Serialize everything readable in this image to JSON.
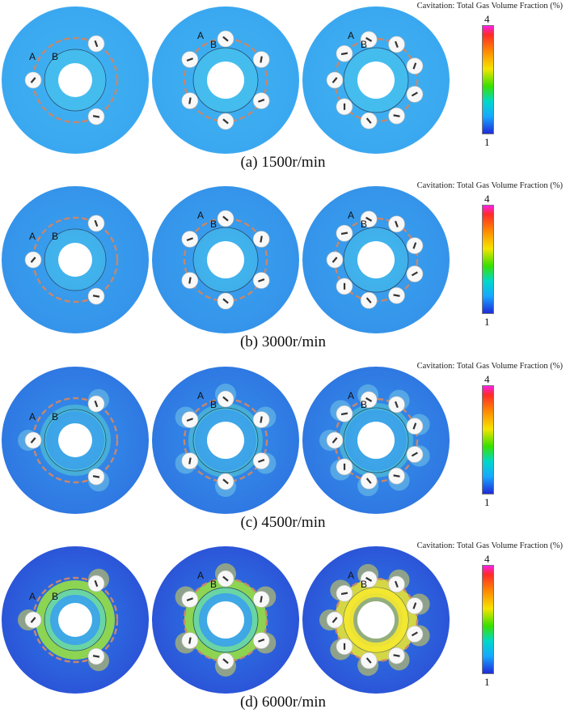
{
  "rows": [
    {
      "caption": "(a)  1500r/min",
      "cb_title": "Cavitation: Total Gas Volume Fraction (%)",
      "cb_max": "4",
      "cb_min": "1",
      "intensity": 0
    },
    {
      "caption": "(b)  3000r/min",
      "cb_title": "Cavitation: Total Gas Volume Fraction (%)",
      "cb_max": "4",
      "cb_min": "1",
      "intensity": 1
    },
    {
      "caption": "(c)  4500r/min",
      "cb_title": "Cavitation: Total Gas Volume Fraction (%)",
      "cb_max": "4",
      "cb_min": "1",
      "intensity": 2
    },
    {
      "caption": "(d)  6000r/min",
      "cb_title": "Cavitation: Total Gas Volume Fraction (%)",
      "cb_max": "4",
      "cb_min": "1",
      "intensity": 3
    }
  ],
  "point_labels": {
    "a": "A",
    "b": "B"
  },
  "roller_counts": [
    3,
    6,
    9
  ],
  "colors": {
    "disc_low": "#3aa8f0",
    "disc_high": "#2f5ee0",
    "ring": "#8a7f7f",
    "dashed": "#c8876a"
  }
}
